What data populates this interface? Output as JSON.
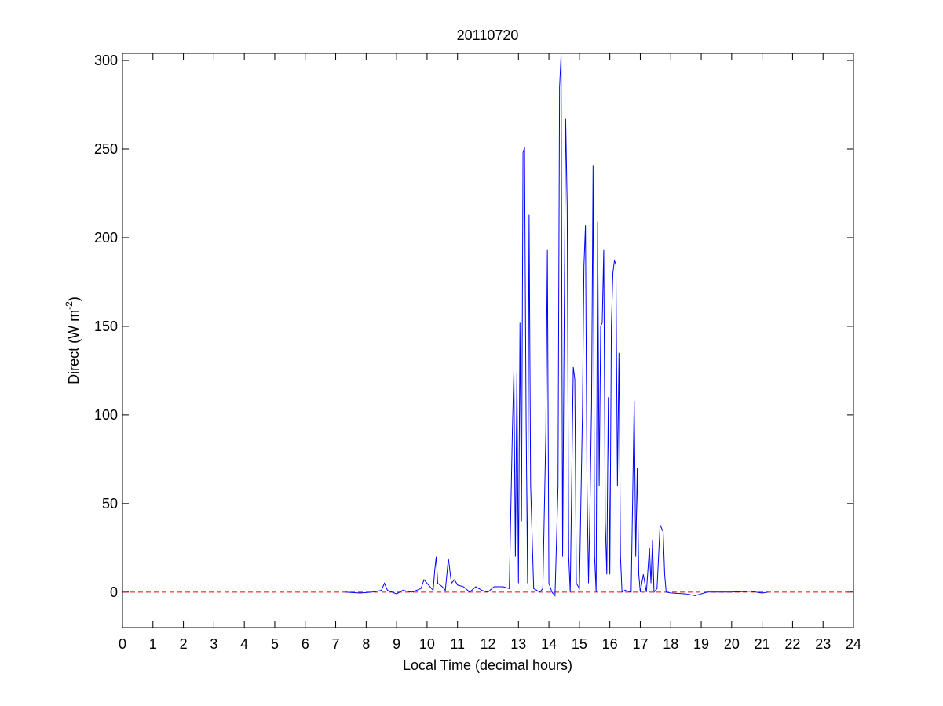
{
  "chart_data": {
    "type": "line",
    "title": "20110720",
    "xlabel": "Local Time (decimal hours)",
    "ylabel": "Direct (W m",
    "ylabel_sup": "-2",
    "ylabel_end": ")",
    "xlim": [
      0,
      24
    ],
    "ylim": [
      -20,
      304
    ],
    "xticks": [
      0,
      1,
      2,
      3,
      4,
      5,
      6,
      7,
      8,
      9,
      10,
      11,
      12,
      13,
      14,
      15,
      16,
      17,
      18,
      19,
      20,
      21,
      22,
      23,
      24
    ],
    "yticks": [
      0,
      50,
      100,
      150,
      200,
      250,
      300
    ],
    "hline": {
      "value": 0,
      "color": "#ff0000"
    },
    "series": [
      {
        "color": "#0000ff",
        "x": [
          7.3,
          7.8,
          8.2,
          8.5,
          8.6,
          8.7,
          9.0,
          9.2,
          9.5,
          9.8,
          9.9,
          10.0,
          10.1,
          10.2,
          10.25,
          10.3,
          10.35,
          10.5,
          10.6,
          10.7,
          10.8,
          10.9,
          11.0,
          11.2,
          11.4,
          11.6,
          11.8,
          12.0,
          12.2,
          12.5,
          12.7,
          12.8,
          12.85,
          12.9,
          12.95,
          13.0,
          13.05,
          13.1,
          13.15,
          13.2,
          13.25,
          13.3,
          13.35,
          13.4,
          13.5,
          13.7,
          13.8,
          13.9,
          13.95,
          14.0,
          14.1,
          14.2,
          14.3,
          14.35,
          14.4,
          14.45,
          14.5,
          14.55,
          14.6,
          14.65,
          14.7,
          14.8,
          14.85,
          14.9,
          15.0,
          15.1,
          15.15,
          15.2,
          15.25,
          15.3,
          15.35,
          15.4,
          15.45,
          15.5,
          15.55,
          15.6,
          15.65,
          15.7,
          15.75,
          15.8,
          15.85,
          15.9,
          15.95,
          16.0,
          16.05,
          16.1,
          16.15,
          16.2,
          16.25,
          16.3,
          16.35,
          16.4,
          16.5,
          16.7,
          16.8,
          16.85,
          16.9,
          16.95,
          17.0,
          17.1,
          17.2,
          17.3,
          17.35,
          17.4,
          17.45,
          17.55,
          17.65,
          17.75,
          17.8,
          17.85,
          18.0,
          18.5,
          18.8,
          19.2,
          20.0,
          20.6,
          21.0,
          21.2
        ],
        "values": [
          0,
          -0.5,
          0,
          1,
          5,
          1,
          -1,
          1,
          0,
          2,
          7,
          5,
          3,
          1,
          12,
          20,
          5,
          3,
          1,
          19,
          5,
          7,
          4,
          3,
          0,
          3,
          1,
          0,
          3,
          3,
          2,
          90,
          125,
          20,
          124,
          5,
          152,
          40,
          248,
          251,
          100,
          5,
          213,
          60,
          2,
          0,
          2,
          90,
          193,
          5,
          0,
          -2,
          60,
          285,
          303,
          20,
          150,
          267,
          218,
          20,
          0,
          127,
          120,
          5,
          2,
          100,
          184,
          207,
          60,
          5,
          50,
          105,
          241,
          20,
          0,
          209,
          60,
          150,
          152,
          193,
          40,
          10,
          110,
          10,
          150,
          180,
          187,
          185,
          60,
          135,
          20,
          0,
          1,
          0,
          108,
          20,
          70,
          10,
          0,
          10,
          0,
          25,
          5,
          29,
          0,
          2,
          38,
          34,
          10,
          0,
          -0.5,
          -1,
          -2,
          0,
          0,
          0.5,
          -0.5,
          0
        ]
      }
    ]
  }
}
